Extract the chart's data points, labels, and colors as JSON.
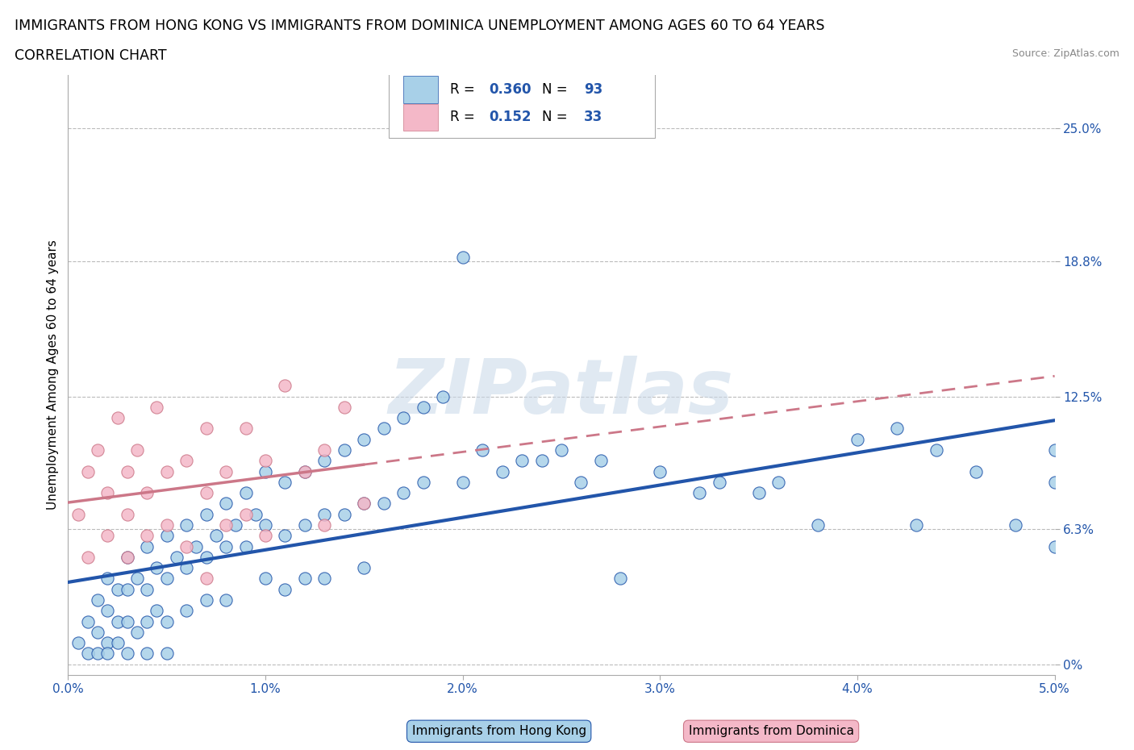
{
  "title_line1": "IMMIGRANTS FROM HONG KONG VS IMMIGRANTS FROM DOMINICA UNEMPLOYMENT AMONG AGES 60 TO 64 YEARS",
  "title_line2": "CORRELATION CHART",
  "source_text": "Source: ZipAtlas.com",
  "ylabel": "Unemployment Among Ages 60 to 64 years",
  "xlabel_hk": "Immigrants from Hong Kong",
  "xlabel_dom": "Immigrants from Dominica",
  "R_hk": 0.36,
  "N_hk": 93,
  "R_dom": 0.152,
  "N_dom": 33,
  "color_hk": "#a8d0e8",
  "color_dom": "#f4b8c8",
  "color_hk_line": "#2255aa",
  "color_dom_line": "#cc7788",
  "xlim": [
    0.0,
    0.05
  ],
  "ylim": [
    -0.005,
    0.275
  ],
  "yticks": [
    0.0,
    0.063,
    0.125,
    0.188,
    0.25
  ],
  "ytick_labels": [
    "0%",
    "6.3%",
    "12.5%",
    "18.8%",
    "25.0%"
  ],
  "xticks": [
    0.0,
    0.01,
    0.02,
    0.03,
    0.04,
    0.05
  ],
  "xtick_labels": [
    "0.0%",
    "1.0%",
    "2.0%",
    "3.0%",
    "4.0%",
    "5.0%"
  ],
  "watermark_text": "ZIPatlas",
  "background_color": "#ffffff",
  "grid_color": "#bbbbbb",
  "title_fontsize": 12.5,
  "tick_fontsize": 11,
  "legend_fontsize": 12,
  "hk_x": [
    0.0005,
    0.001,
    0.001,
    0.0015,
    0.0015,
    0.0015,
    0.002,
    0.002,
    0.002,
    0.002,
    0.0025,
    0.0025,
    0.0025,
    0.003,
    0.003,
    0.003,
    0.003,
    0.0035,
    0.0035,
    0.004,
    0.004,
    0.004,
    0.004,
    0.0045,
    0.0045,
    0.005,
    0.005,
    0.005,
    0.005,
    0.0055,
    0.006,
    0.006,
    0.006,
    0.0065,
    0.007,
    0.007,
    0.007,
    0.0075,
    0.008,
    0.008,
    0.008,
    0.0085,
    0.009,
    0.009,
    0.0095,
    0.01,
    0.01,
    0.01,
    0.011,
    0.011,
    0.011,
    0.012,
    0.012,
    0.012,
    0.013,
    0.013,
    0.013,
    0.014,
    0.014,
    0.015,
    0.015,
    0.015,
    0.016,
    0.016,
    0.017,
    0.017,
    0.018,
    0.018,
    0.019,
    0.02,
    0.02,
    0.021,
    0.022,
    0.023,
    0.024,
    0.025,
    0.026,
    0.027,
    0.028,
    0.03,
    0.032,
    0.033,
    0.035,
    0.036,
    0.038,
    0.04,
    0.042,
    0.043,
    0.044,
    0.046,
    0.048,
    0.05,
    0.05,
    0.05
  ],
  "hk_y": [
    0.01,
    0.02,
    0.005,
    0.03,
    0.015,
    0.005,
    0.04,
    0.025,
    0.01,
    0.005,
    0.035,
    0.02,
    0.01,
    0.05,
    0.035,
    0.02,
    0.005,
    0.04,
    0.015,
    0.055,
    0.035,
    0.02,
    0.005,
    0.045,
    0.025,
    0.06,
    0.04,
    0.02,
    0.005,
    0.05,
    0.065,
    0.045,
    0.025,
    0.055,
    0.07,
    0.05,
    0.03,
    0.06,
    0.075,
    0.055,
    0.03,
    0.065,
    0.08,
    0.055,
    0.07,
    0.09,
    0.065,
    0.04,
    0.085,
    0.06,
    0.035,
    0.09,
    0.065,
    0.04,
    0.095,
    0.07,
    0.04,
    0.1,
    0.07,
    0.105,
    0.075,
    0.045,
    0.11,
    0.075,
    0.115,
    0.08,
    0.12,
    0.085,
    0.125,
    0.19,
    0.085,
    0.1,
    0.09,
    0.095,
    0.095,
    0.1,
    0.085,
    0.095,
    0.04,
    0.09,
    0.08,
    0.085,
    0.08,
    0.085,
    0.065,
    0.105,
    0.11,
    0.065,
    0.1,
    0.09,
    0.065,
    0.085,
    0.055,
    0.1
  ],
  "dom_x": [
    0.0005,
    0.001,
    0.001,
    0.0015,
    0.002,
    0.002,
    0.0025,
    0.003,
    0.003,
    0.003,
    0.0035,
    0.004,
    0.004,
    0.0045,
    0.005,
    0.005,
    0.006,
    0.006,
    0.007,
    0.007,
    0.007,
    0.008,
    0.008,
    0.009,
    0.009,
    0.01,
    0.01,
    0.011,
    0.012,
    0.013,
    0.013,
    0.014,
    0.015
  ],
  "dom_y": [
    0.07,
    0.09,
    0.05,
    0.1,
    0.08,
    0.06,
    0.115,
    0.09,
    0.07,
    0.05,
    0.1,
    0.08,
    0.06,
    0.12,
    0.09,
    0.065,
    0.095,
    0.055,
    0.11,
    0.08,
    0.04,
    0.09,
    0.065,
    0.11,
    0.07,
    0.095,
    0.06,
    0.13,
    0.09,
    0.1,
    0.065,
    0.12,
    0.075
  ]
}
